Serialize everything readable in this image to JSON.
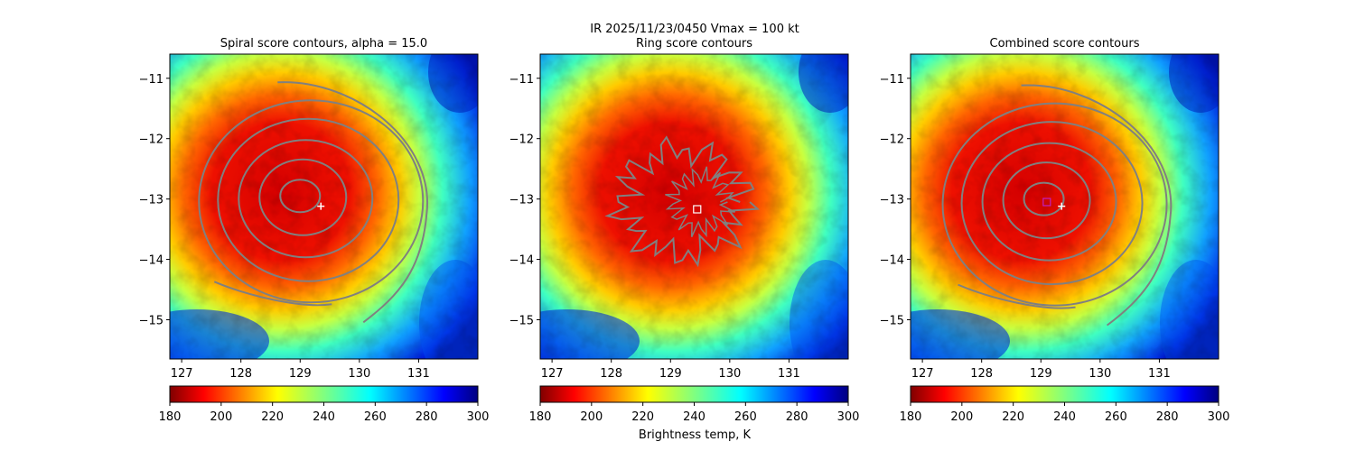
{
  "figure": {
    "suptitle_line1": "IR  2025/11/23/0450    Vmax = 100 kt",
    "colorbar_label": "Brightness temp, K"
  },
  "chart_data": [
    {
      "type": "heatmap",
      "title": "Spiral score contours, alpha = 15.0",
      "xlim": [
        126.8,
        132.0
      ],
      "ylim": [
        -15.65,
        -10.6
      ],
      "xticks": [
        127,
        128,
        129,
        130,
        131
      ],
      "yticks": [
        -11,
        -12,
        -13,
        -14,
        -15
      ],
      "colormap": "jet_r",
      "colorbar": {
        "min": 180,
        "max": 300,
        "ticks": [
          180,
          200,
          220,
          240,
          260,
          280,
          300
        ]
      },
      "contour_color": "#808080",
      "contour_center": {
        "lon": 129.0,
        "lat": -12.95
      },
      "marker": {
        "type": "plus",
        "lon": 129.35,
        "lat": -13.12,
        "color": "#ffffff"
      }
    },
    {
      "type": "heatmap",
      "title": "Ring score contours",
      "xlim": [
        126.8,
        132.0
      ],
      "ylim": [
        -15.65,
        -10.6
      ],
      "xticks": [
        127,
        128,
        129,
        130,
        131
      ],
      "yticks": [
        -11,
        -12,
        -13,
        -14,
        -15
      ],
      "colormap": "jet_r",
      "colorbar": {
        "min": 180,
        "max": 300,
        "ticks": [
          180,
          200,
          220,
          240,
          260,
          280,
          300
        ]
      },
      "contour_color": "#808080",
      "marker": {
        "type": "square",
        "lon": 129.45,
        "lat": -13.17,
        "color": "#ffffff"
      }
    },
    {
      "type": "heatmap",
      "title": "Combined score contours",
      "xlim": [
        126.8,
        132.0
      ],
      "ylim": [
        -15.65,
        -10.6
      ],
      "xticks": [
        127,
        128,
        129,
        130,
        131
      ],
      "yticks": [
        -11,
        -12,
        -13,
        -14,
        -15
      ],
      "colormap": "jet_r",
      "colorbar": {
        "min": 180,
        "max": 300,
        "ticks": [
          180,
          200,
          220,
          240,
          260,
          280,
          300
        ]
      },
      "contour_color": "#808080",
      "contour_center": {
        "lon": 129.05,
        "lat": -13.0
      },
      "marker": {
        "type": "plus",
        "lon": 129.35,
        "lat": -13.12,
        "color": "#ffffff"
      },
      "marker2": {
        "type": "square",
        "lon": 129.1,
        "lat": -13.05,
        "color": "#c020c0"
      }
    }
  ]
}
